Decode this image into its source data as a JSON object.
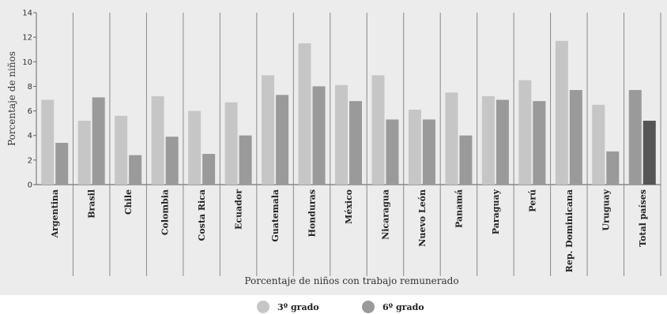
{
  "chart_data": {
    "type": "bar",
    "ylabel": "Porcentaje de niños",
    "xlabel": "Porcentaje de niños con trabajo remunerado",
    "ylim": [
      0,
      14
    ],
    "yticks": [
      0,
      2,
      4,
      6,
      8,
      10,
      12,
      14
    ],
    "grid": false,
    "legend_position": "bottom",
    "categories": [
      "Argentina",
      "Brasil",
      "Chile",
      "Colombia",
      "Costa Rica",
      "Ecuador",
      "Guatemala",
      "Honduras",
      "México",
      "Nicaragua",
      "Nuevo León",
      "Panamá",
      "Paraguay",
      "Perú",
      "Rep. Dominicana",
      "Uruguay",
      "Total países"
    ],
    "series": [
      {
        "name": "3º grado",
        "color": "#c6c6c6",
        "values": [
          6.9,
          5.2,
          5.6,
          7.2,
          6.0,
          6.7,
          8.9,
          11.5,
          8.1,
          8.9,
          6.1,
          7.5,
          7.2,
          8.5,
          11.7,
          6.5,
          7.7
        ]
      },
      {
        "name": "6º grado",
        "color": "#9a9a9a",
        "values": [
          3.4,
          7.1,
          2.4,
          3.9,
          2.5,
          4.0,
          7.3,
          8.0,
          6.8,
          5.3,
          5.3,
          4.0,
          6.9,
          6.8,
          7.7,
          2.7,
          5.2
        ]
      }
    ],
    "highlight_colors": {
      "total_3": "#9a9a9a",
      "total_6": "#555555"
    }
  }
}
